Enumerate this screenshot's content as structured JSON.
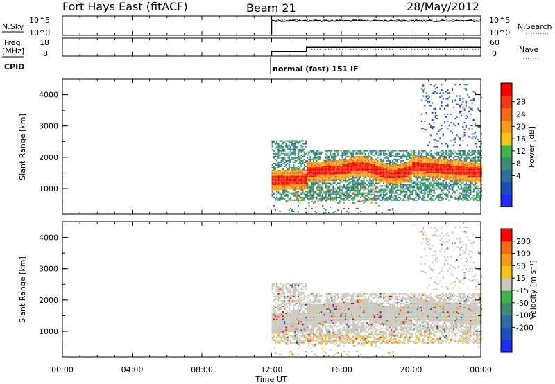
{
  "header": {
    "station": "Fort Hays East (fitACF)",
    "beam": "Beam 21",
    "date": "28/May/2012"
  },
  "colors": {
    "power": [
      "#1f2cff",
      "#1e4fb5",
      "#2f6e9e",
      "#3f8a75",
      "#3fb34b",
      "#f6c31c",
      "#f29a1c",
      "#f06a18",
      "#ee3a12",
      "#ff0000"
    ],
    "velocity": [
      "#1f2cff",
      "#1e4fb5",
      "#2f6e9e",
      "#3f8a75",
      "#3fb34b",
      "#c8c8c0",
      "#f6c31c",
      "#f29a1c",
      "#f06a18",
      "#ff0000"
    ],
    "ground": "#c8c8c0"
  },
  "chart_data": [
    {
      "type": "line",
      "name": "nsky-nsearch",
      "left_label": "N.Sky",
      "right_label": "N.Search",
      "left_ticks": [
        "10^5",
        "10^0"
      ],
      "right_ticks": [
        "10^5",
        "10^0"
      ],
      "x_range_hours": [
        0,
        24
      ],
      "series": [
        {
          "hour_start": 12,
          "hour_end": 24,
          "level": 0.75,
          "style": "solid-dots"
        }
      ]
    },
    {
      "type": "line",
      "name": "freq-nave",
      "left_label": "Freq.",
      "left_unit": "[MHz]",
      "right_label": "Nave",
      "left_ticks": [
        "18",
        "8"
      ],
      "right_ticks": [
        "60",
        "0"
      ],
      "series": [
        {
          "kind": "freq",
          "points": [
            [
              12,
              10.6
            ],
            [
              14,
              10.6
            ],
            [
              14,
              12.9
            ],
            [
              24,
              12.9
            ]
          ]
        },
        {
          "kind": "nave",
          "points": [
            [
              12,
              17
            ],
            [
              14,
              17
            ],
            [
              14,
              23
            ],
            [
              24,
              23
            ]
          ]
        }
      ]
    },
    {
      "type": "table",
      "name": "cpid",
      "label": "CPID",
      "entries": [
        {
          "hour": 12,
          "text": "normal (fast) 151 IF"
        }
      ]
    },
    {
      "type": "heatmap",
      "name": "power",
      "ylabel": "Slant Range [km]",
      "yticks": [
        1000,
        2000,
        3000,
        4000
      ],
      "ylim": [
        180,
        4500
      ],
      "colorbar": {
        "label": "Power [dB]",
        "ticks": [
          "28",
          "24",
          "20",
          "16",
          "12",
          "8",
          "4"
        ],
        "range": [
          0,
          30
        ]
      }
    },
    {
      "type": "heatmap",
      "name": "velocity",
      "ylabel": "Slant Range [km]",
      "yticks": [
        1000,
        2000,
        3000,
        4000
      ],
      "ylim": [
        180,
        4500
      ],
      "colorbar": {
        "label": "Velocity [m s⁻¹]",
        "ticks": [
          "200",
          "100",
          "50",
          "15",
          "-15",
          "-50",
          "-100",
          "-200"
        ]
      }
    }
  ],
  "xaxis": {
    "label": "Time UT",
    "ticks": [
      "00:00",
      "04:00",
      "08:00",
      "12:00",
      "16:00",
      "20:00",
      "00:00"
    ]
  }
}
